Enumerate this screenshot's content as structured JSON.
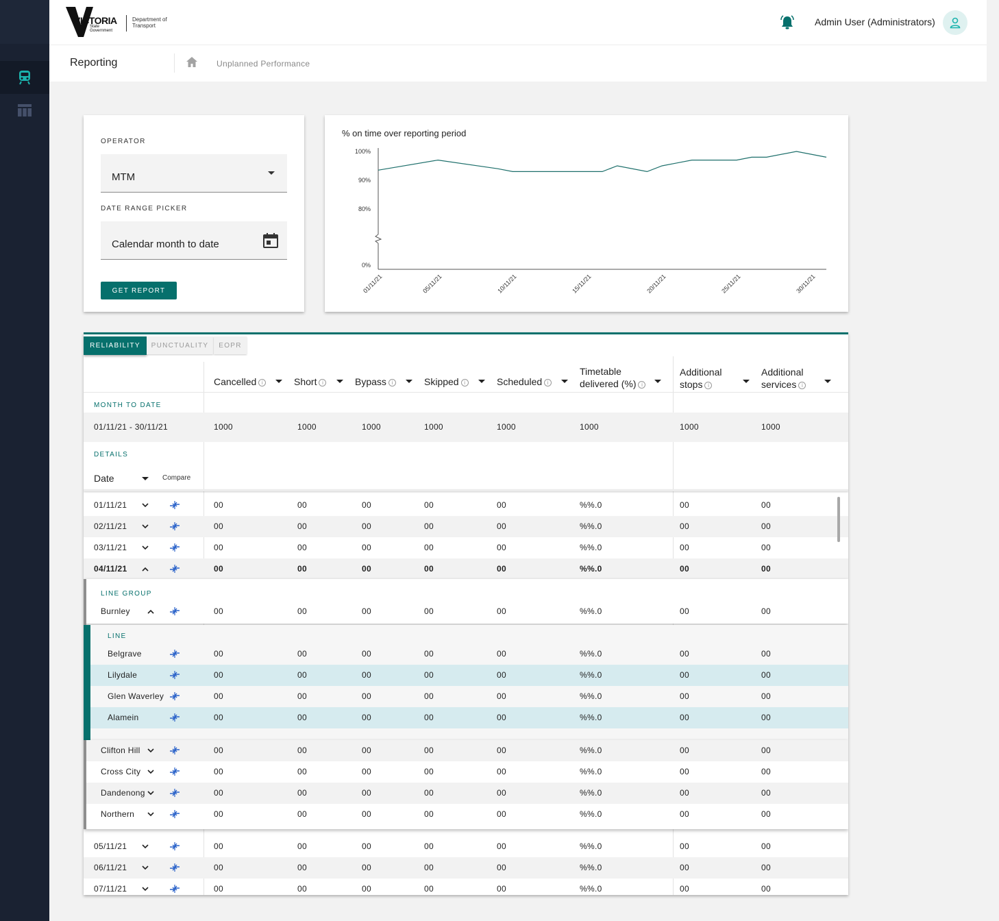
{
  "header": {
    "logo_main": "VICTORIA",
    "logo_sub": "State Government",
    "logo_dept": "Department of Transport",
    "user": "Admin User (Administrators)",
    "bell_icon": "bell-icon",
    "avatar_icon": "user-icon"
  },
  "sidebar": {
    "items": [
      {
        "icon": "train-icon",
        "active": true
      },
      {
        "icon": "table-icon",
        "active": false
      }
    ]
  },
  "subheader": {
    "title": "Reporting",
    "breadcrumb": "Unplanned Performance"
  },
  "filters": {
    "operator_label": "OPERATOR",
    "operator_value": "MTM",
    "date_label": "DATE RANGE PICKER",
    "date_value": "Calendar month to date",
    "button": "GET REPORT"
  },
  "chart_data": {
    "type": "line",
    "title": "% on time over reporting period",
    "y_ticks": [
      "100%",
      "90%",
      "80%",
      "0%"
    ],
    "x_ticks": [
      "01/11/21",
      "05/11/21",
      "10/11/21",
      "15/11/21",
      "20/11/21",
      "25/11/21",
      "30/11/21"
    ],
    "axis_break": true,
    "series": [
      {
        "color": "#1d6f6b",
        "x": [
          1,
          5,
          9,
          10,
          12,
          14,
          15,
          16,
          17,
          19,
          20,
          21,
          22,
          25,
          26,
          27,
          29,
          31
        ],
        "y": [
          93.5,
          97,
          94,
          93,
          93,
          93,
          93,
          93,
          95,
          93,
          95,
          96,
          97,
          97,
          98,
          98,
          100,
          98
        ]
      }
    ]
  },
  "tabs": [
    "RELIABILITY",
    "PUNCTUALITY",
    "EOPR"
  ],
  "columns": [
    "Cancelled",
    "Short",
    "Bypass",
    "Skipped",
    "Scheduled",
    "Timetable delivered (%)",
    "Additional stops",
    "Additional services"
  ],
  "summary": {
    "label": "MONTH TO DATE",
    "range": "01/11/21 - 30/11/21",
    "values": [
      "1000",
      "1000",
      "1000",
      "1000",
      "1000",
      "1000",
      "1000",
      "1000"
    ]
  },
  "details": {
    "label": "DETAILS",
    "date_header": "Date",
    "compare_header": "Compare",
    "line_group_label": "LINE GROUP",
    "line_label": "LINE"
  },
  "rows": {
    "dates_top": [
      {
        "label": "01/11/21",
        "values": [
          "00",
          "00",
          "00",
          "00",
          "00",
          "%%.0",
          "00",
          "00"
        ]
      },
      {
        "label": "02/11/21",
        "values": [
          "00",
          "00",
          "00",
          "00",
          "00",
          "%%.0",
          "00",
          "00"
        ]
      },
      {
        "label": "03/11/21",
        "values": [
          "00",
          "00",
          "00",
          "00",
          "00",
          "%%.0",
          "00",
          "00"
        ]
      },
      {
        "label": "04/11/21",
        "values": [
          "00",
          "00",
          "00",
          "00",
          "00",
          "%%.0",
          "00",
          "00"
        ]
      }
    ],
    "group": {
      "label": "Burnley",
      "values": [
        "00",
        "00",
        "00",
        "00",
        "00",
        "%%.0",
        "00",
        "00"
      ]
    },
    "lines": [
      {
        "label": "Belgrave",
        "values": [
          "00",
          "00",
          "00",
          "00",
          "00",
          "%%.0",
          "00",
          "00"
        ]
      },
      {
        "label": "Lilydale",
        "values": [
          "00",
          "00",
          "00",
          "00",
          "00",
          "%%.0",
          "00",
          "00"
        ]
      },
      {
        "label": "Glen Waverley",
        "values": [
          "00",
          "00",
          "00",
          "00",
          "00",
          "%%.0",
          "00",
          "00"
        ]
      },
      {
        "label": "Alamein",
        "values": [
          "00",
          "00",
          "00",
          "00",
          "00",
          "%%.0",
          "00",
          "00"
        ]
      }
    ],
    "other_groups": [
      {
        "label": "Clifton Hill",
        "values": [
          "00",
          "00",
          "00",
          "00",
          "00",
          "%%.0",
          "00",
          "00"
        ]
      },
      {
        "label": "Cross City",
        "values": [
          "00",
          "00",
          "00",
          "00",
          "00",
          "%%.0",
          "00",
          "00"
        ]
      },
      {
        "label": "Dandenong",
        "values": [
          "00",
          "00",
          "00",
          "00",
          "00",
          "%%.0",
          "00",
          "00"
        ]
      },
      {
        "label": "Northern",
        "values": [
          "00",
          "00",
          "00",
          "00",
          "00",
          "%%.0",
          "00",
          "00"
        ]
      }
    ],
    "dates_bottom": [
      {
        "label": "05/11/21",
        "values": [
          "00",
          "00",
          "00",
          "00",
          "00",
          "%%.0",
          "00",
          "00"
        ]
      },
      {
        "label": "06/11/21",
        "values": [
          "00",
          "00",
          "00",
          "00",
          "00",
          "%%.0",
          "00",
          "00"
        ]
      },
      {
        "label": "07/11/21",
        "values": [
          "00",
          "00",
          "00",
          "00",
          "00",
          "%%.0",
          "00",
          "00"
        ]
      }
    ]
  }
}
